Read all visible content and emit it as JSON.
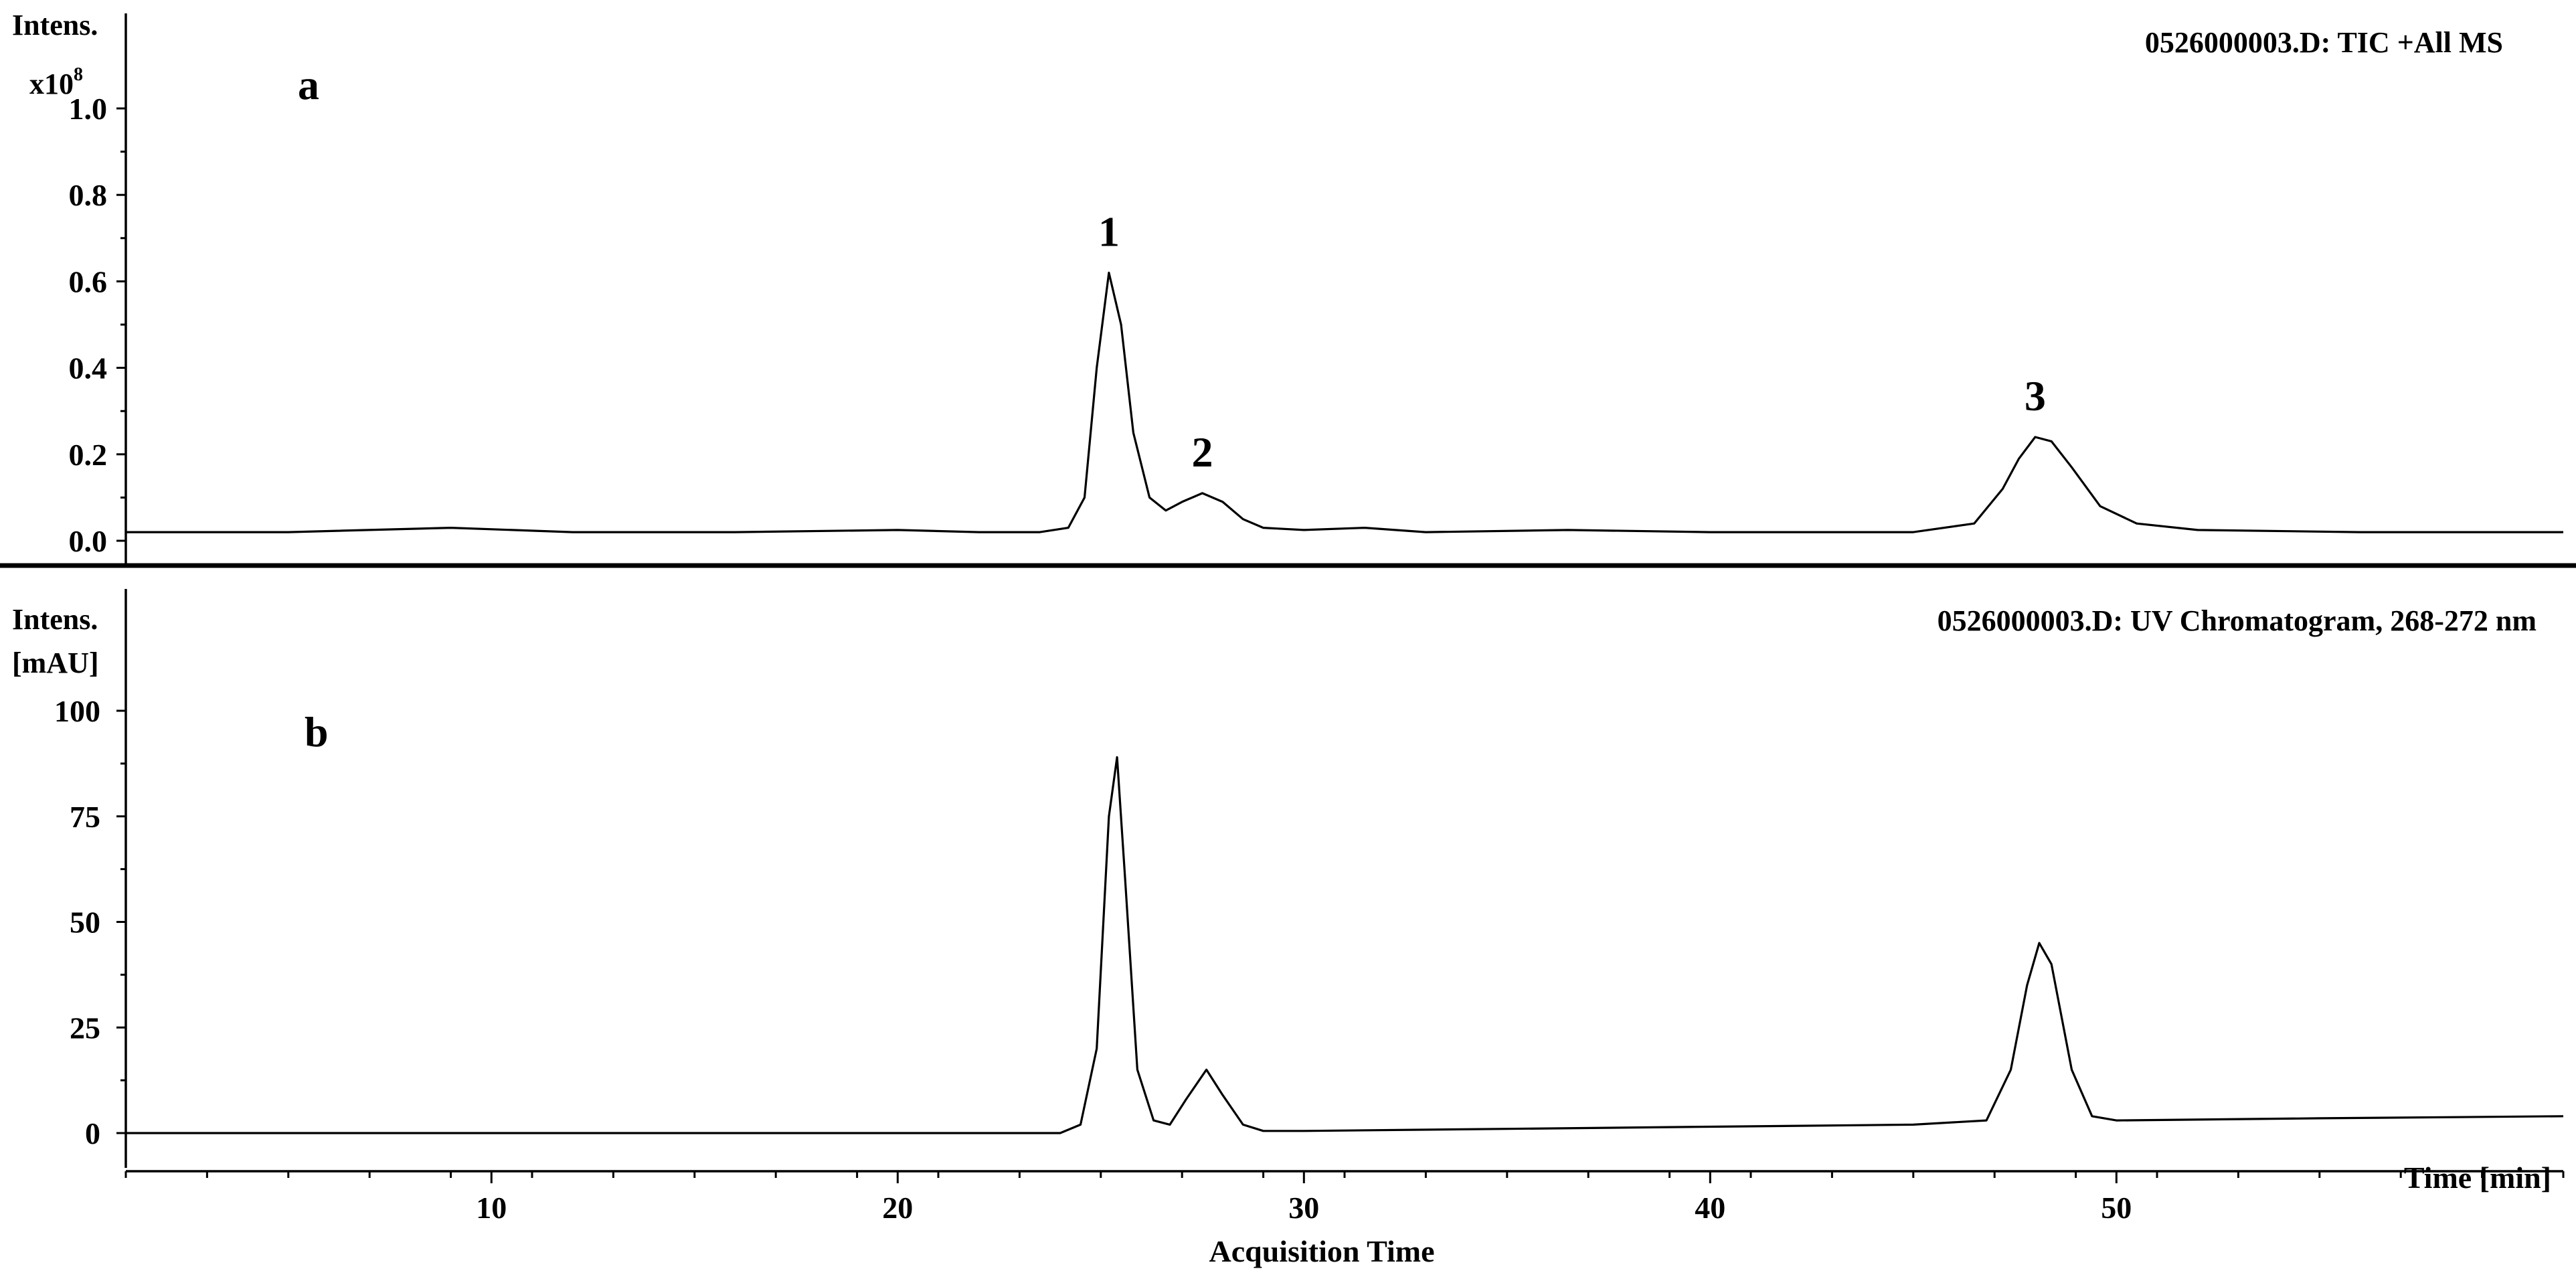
{
  "chart_data": {
    "x_axis": {
      "label": "Acquisition Time",
      "unit_label": "Time [min]",
      "range": [
        1,
        61
      ],
      "ticks": [
        10,
        20,
        30,
        40,
        50
      ]
    },
    "panels": [
      {
        "id": "a",
        "type": "line",
        "panel_label": "a",
        "title": "0526000003.D: TIC +All MS",
        "y_axis_label": "Intens.",
        "y_multiplier_base": "x10",
        "y_multiplier_exp": "8",
        "y_range": [
          -0.05,
          1.25
        ],
        "y_ticks": [
          {
            "value": 0.0,
            "label": "0.0"
          },
          {
            "value": 0.2,
            "label": "0.2"
          },
          {
            "value": 0.4,
            "label": "0.4"
          },
          {
            "value": 0.6,
            "label": "0.6"
          },
          {
            "value": 0.8,
            "label": "0.8"
          },
          {
            "value": 1.0,
            "label": "1.0"
          }
        ],
        "x": [
          1,
          5,
          9,
          12,
          16,
          20,
          22,
          23.5,
          24.2,
          24.6,
          24.9,
          25.2,
          25.5,
          25.8,
          26.2,
          26.6,
          27.0,
          27.5,
          28.0,
          28.5,
          29.0,
          30.0,
          31.5,
          33,
          36.5,
          40,
          45,
          46.5,
          47.2,
          47.6,
          48.0,
          48.4,
          48.9,
          49.6,
          50.5,
          52,
          56,
          61
        ],
        "y": [
          0.02,
          0.02,
          0.03,
          0.02,
          0.02,
          0.025,
          0.02,
          0.02,
          0.03,
          0.1,
          0.4,
          0.62,
          0.5,
          0.25,
          0.1,
          0.07,
          0.09,
          0.11,
          0.09,
          0.05,
          0.03,
          0.025,
          0.03,
          0.02,
          0.025,
          0.02,
          0.02,
          0.04,
          0.12,
          0.19,
          0.24,
          0.23,
          0.17,
          0.08,
          0.04,
          0.025,
          0.02,
          0.02
        ],
        "peak_labels": [
          {
            "text": "1",
            "x": 25.2,
            "y": 0.62
          },
          {
            "text": "2",
            "x": 27.5,
            "y": 0.11
          },
          {
            "text": "3",
            "x": 48.0,
            "y": 0.24
          }
        ]
      },
      {
        "id": "b",
        "type": "line",
        "panel_label": "b",
        "title": "0526000003.D: UV Chromatogram, 268-272 nm",
        "y_axis_label": "Intens.",
        "y_unit": "[mAU]",
        "y_range": [
          -10,
          115
        ],
        "y_ticks": [
          {
            "value": 0,
            "label": "0"
          },
          {
            "value": 25,
            "label": "25"
          },
          {
            "value": 50,
            "label": "50"
          },
          {
            "value": 75,
            "label": "75"
          },
          {
            "value": 100,
            "label": "100"
          }
        ],
        "x": [
          1,
          5,
          10,
          15,
          20,
          24.0,
          24.5,
          24.9,
          25.2,
          25.4,
          25.6,
          25.9,
          26.3,
          26.7,
          27.1,
          27.6,
          28.0,
          28.5,
          29.0,
          30,
          35,
          40,
          45,
          46.8,
          47.4,
          47.8,
          48.1,
          48.4,
          48.9,
          49.4,
          50,
          55,
          61
        ],
        "y": [
          0,
          0,
          0,
          0,
          0,
          0,
          2,
          20,
          75,
          89,
          60,
          15,
          3,
          2,
          8,
          15,
          9,
          2,
          0.5,
          0.5,
          1,
          1.5,
          2,
          3,
          15,
          35,
          45,
          40,
          15,
          4,
          3,
          3.5,
          4
        ]
      }
    ]
  }
}
